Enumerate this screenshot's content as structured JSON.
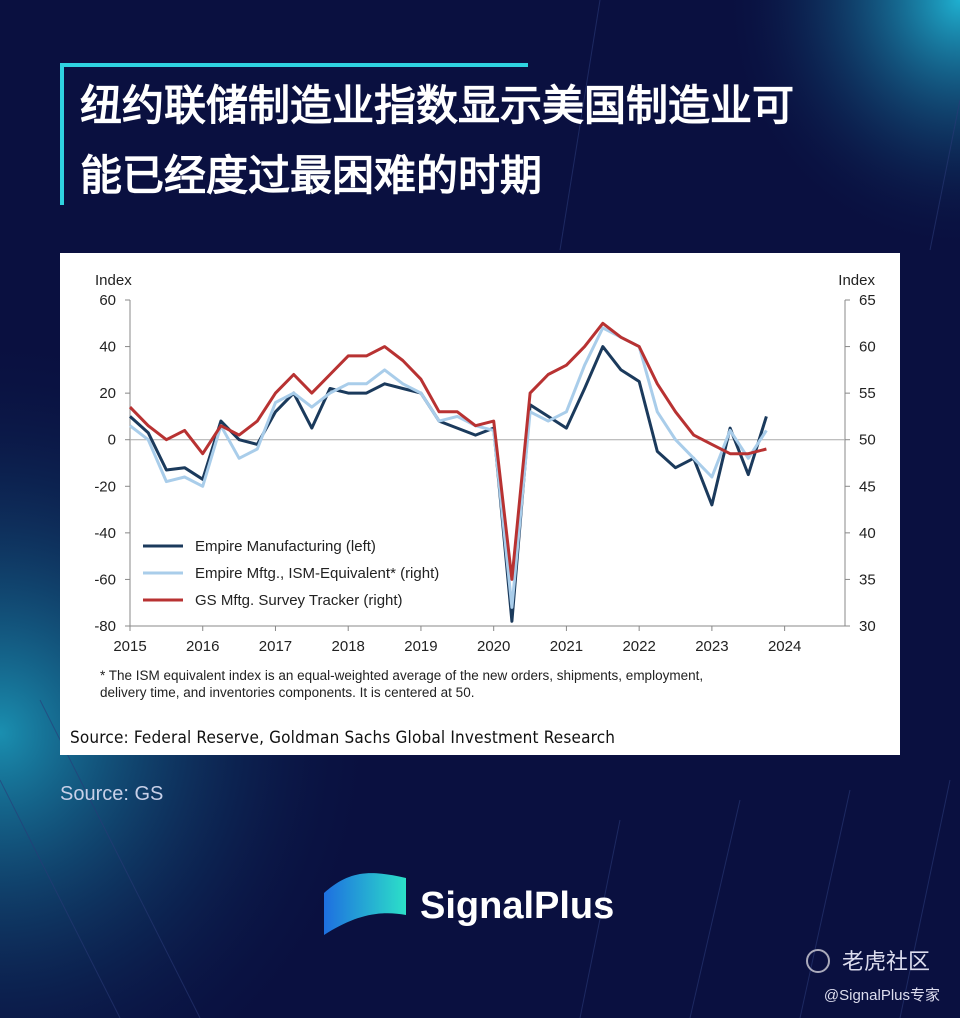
{
  "header": {
    "title_lines": [
      "纽约联储制造业指数显示美国制造业可",
      "能已经度过最困难的时期"
    ]
  },
  "chart_data": {
    "type": "line",
    "ylabel": "Index",
    "y2label": "Index",
    "xlim": [
      2015,
      2024.83
    ],
    "xticks": [
      2015,
      2016,
      2017,
      2018,
      2019,
      2020,
      2021,
      2022,
      2023,
      2024
    ],
    "ylim": [
      -80,
      60
    ],
    "yticks": [
      -80,
      -60,
      -40,
      -20,
      0,
      20,
      40,
      60
    ],
    "y2lim": [
      30,
      65
    ],
    "y2ticks": [
      30,
      35,
      40,
      45,
      50,
      55,
      60,
      65
    ],
    "x": [
      2015,
      2015.25,
      2015.5,
      2015.75,
      2016,
      2016.25,
      2016.5,
      2016.75,
      2017,
      2017.25,
      2017.5,
      2017.75,
      2018,
      2018.25,
      2018.5,
      2018.75,
      2019,
      2019.25,
      2019.5,
      2019.75,
      2020,
      2020.25,
      2020.5,
      2020.75,
      2021,
      2021.25,
      2021.5,
      2021.75,
      2022,
      2022.25,
      2022.5,
      2022.75,
      2023,
      2023.25,
      2023.5,
      2023.75
    ],
    "series": [
      {
        "name": "Empire Manufacturing (left)",
        "color": "#1b3a5c",
        "axis": "y",
        "values": [
          10,
          3,
          -13,
          -12,
          -17,
          8,
          0,
          -2,
          12,
          20,
          5,
          22,
          20,
          20,
          24,
          22,
          20,
          8,
          5,
          2,
          5,
          -78,
          15,
          10,
          5,
          22,
          40,
          30,
          25,
          -5,
          -12,
          -8,
          -28,
          5,
          -15,
          10
        ]
      },
      {
        "name": "Empire Mftg., ISM-Equivalent* (right)",
        "color": "#a9cdea",
        "axis": "y2",
        "values": [
          51.5,
          50,
          45.5,
          46,
          45,
          51.5,
          48,
          49,
          54,
          55,
          53.5,
          55,
          56,
          56,
          57.5,
          56,
          55,
          52,
          52.5,
          51.5,
          51,
          32,
          53,
          52,
          53,
          58,
          62,
          61,
          60,
          53,
          50,
          48,
          46,
          51,
          48,
          51
        ]
      },
      {
        "name": "GS Mftg. Survey Tracker (right)",
        "color": "#b83232",
        "axis": "y2",
        "values": [
          53.5,
          51.5,
          50,
          51,
          48.5,
          51.5,
          50.5,
          52,
          55,
          57,
          55,
          57,
          59,
          59,
          60,
          58.5,
          56.5,
          53,
          53,
          51.5,
          52,
          35,
          55,
          57,
          58,
          60,
          62.5,
          61,
          60,
          56,
          53,
          50.5,
          49.5,
          48.5,
          48.5,
          49
        ]
      }
    ],
    "footnote_lines": [
      "* The ISM equivalent index is an equal-weighted average of the new orders, shipments, employment,",
      "delivery time, and inventories components. It is centered at 50."
    ],
    "source": "Source: Federal Reserve, Goldman Sachs Global Investment Research"
  },
  "caption": "Source: GS",
  "brand": "SignalPlus",
  "watermark": {
    "site": "老虎社区",
    "handle": "@SignalPlus专家"
  }
}
